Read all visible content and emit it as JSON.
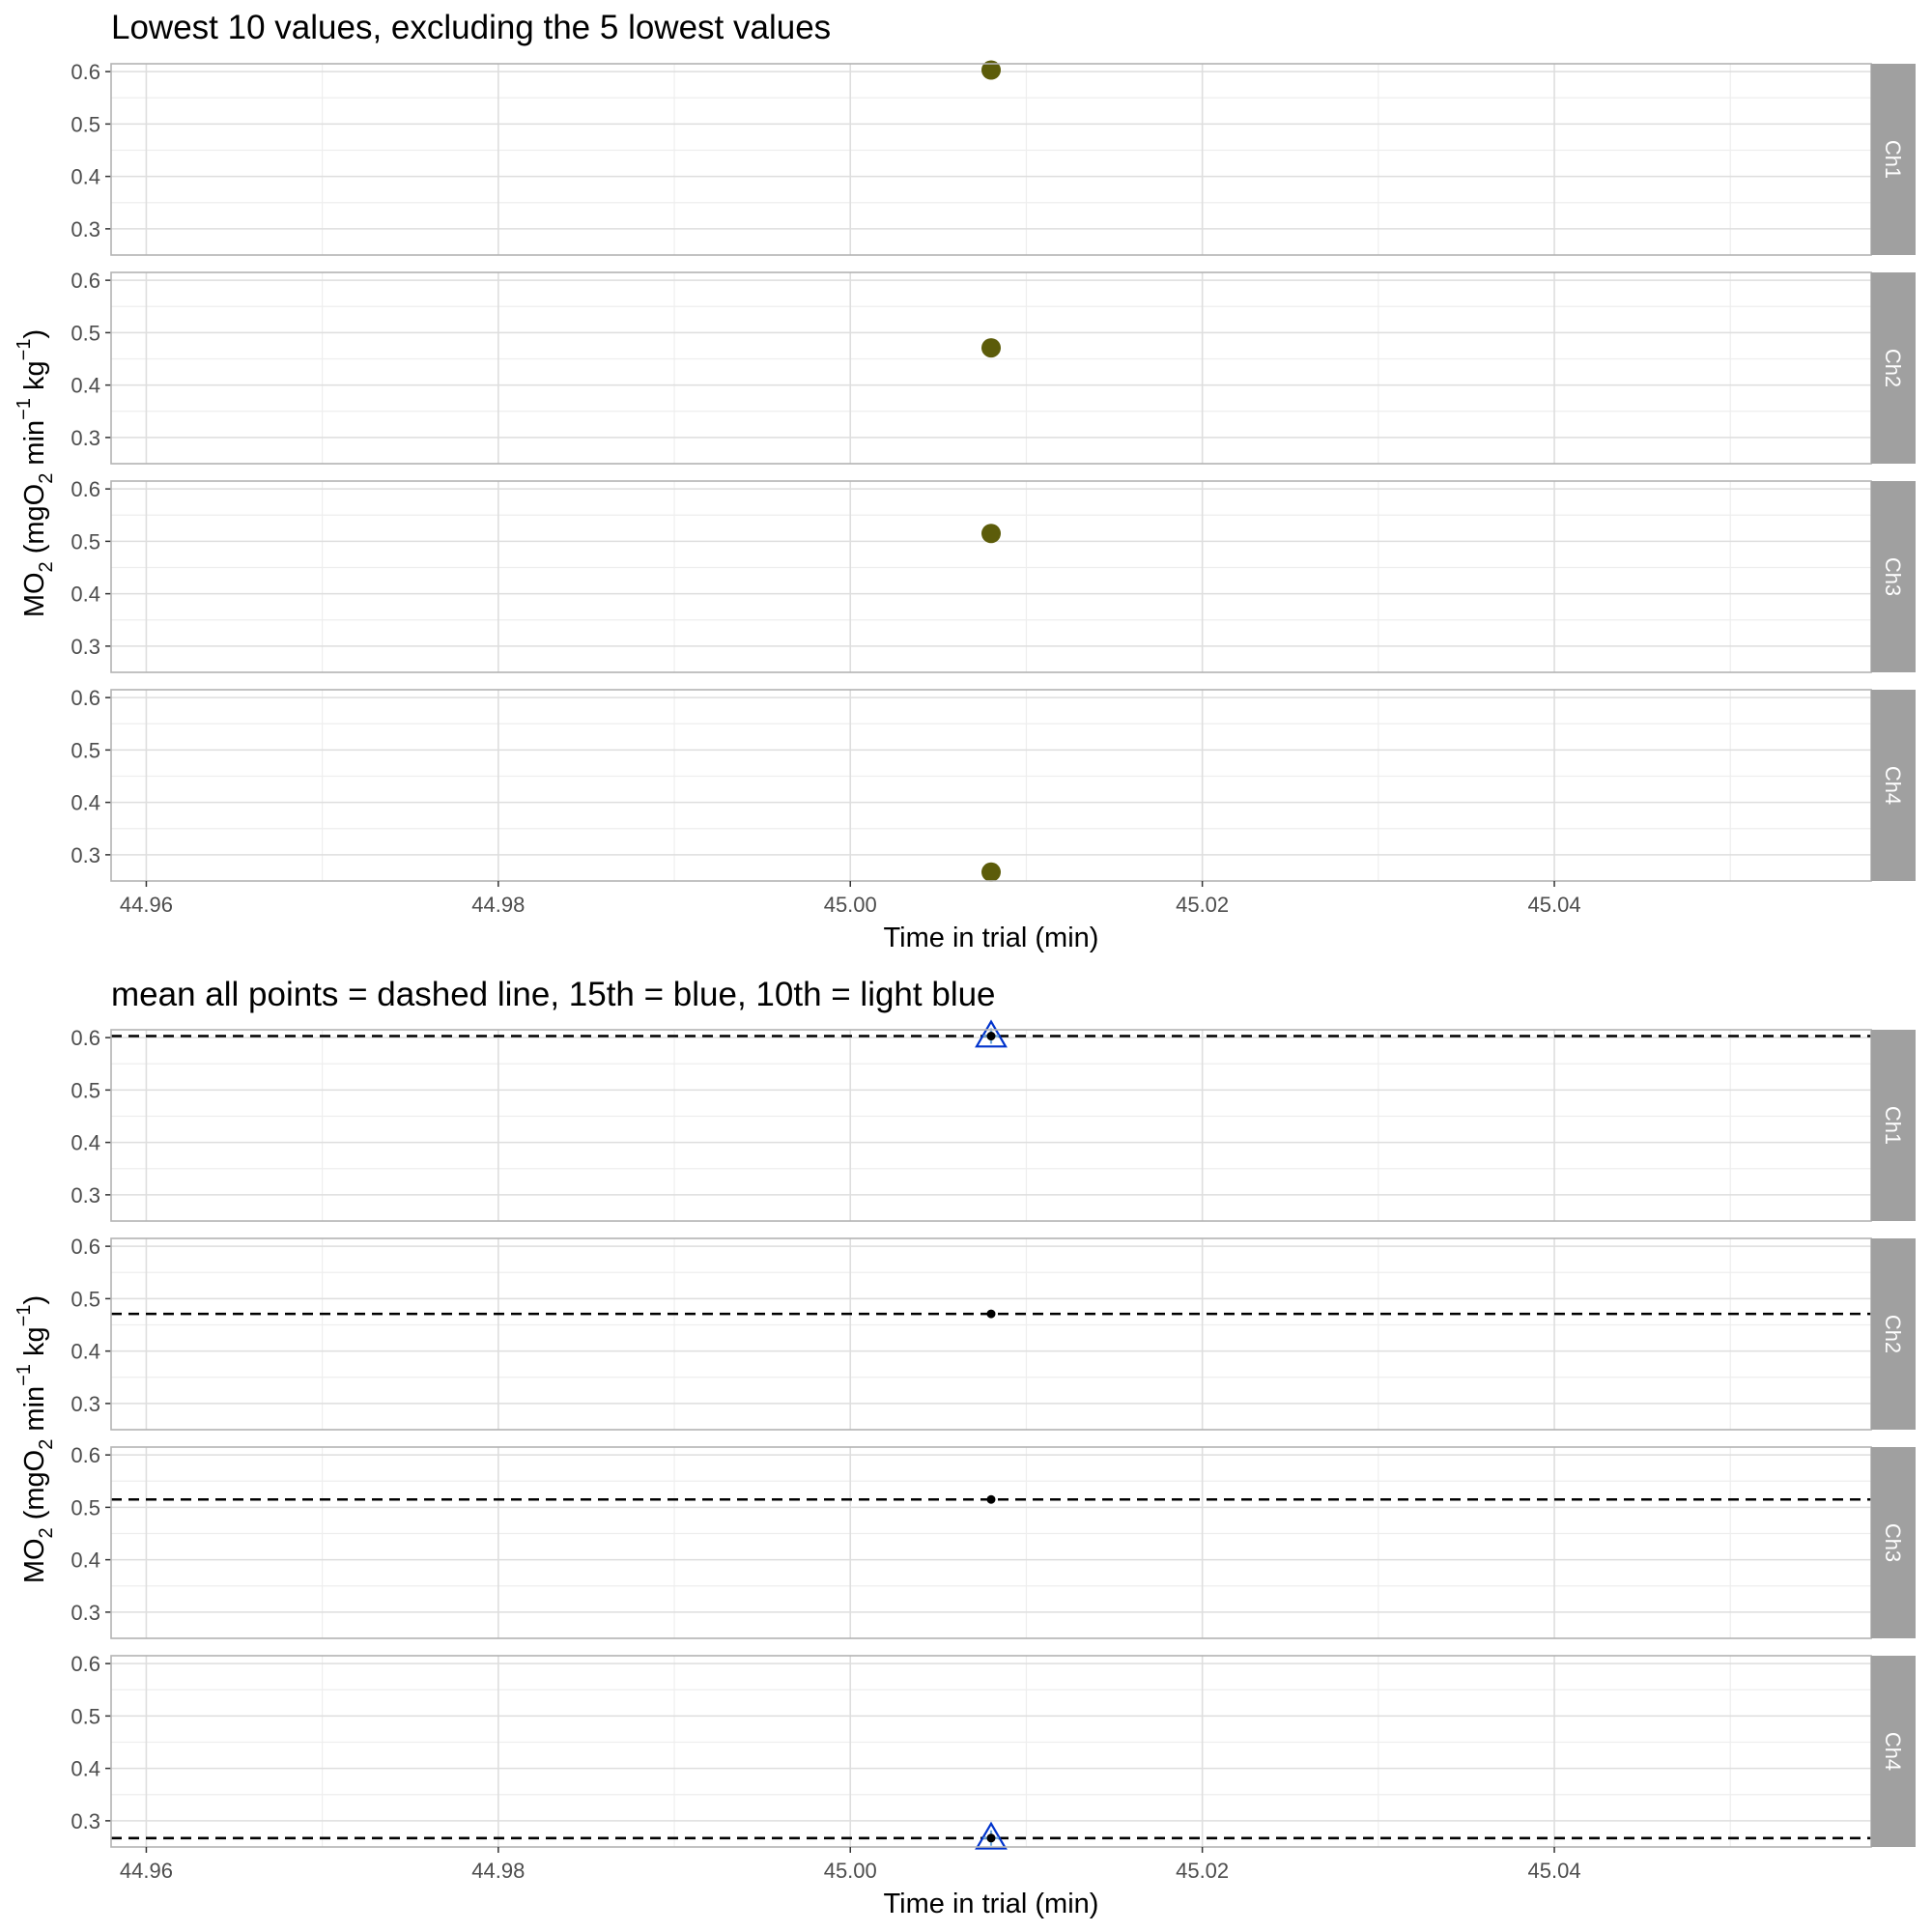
{
  "chart_data": [
    {
      "type": "scatter",
      "title": "Lowest 10 values, excluding the 5 lowest values",
      "xlabel": "Time in trial (min)",
      "ylabel": "MO2 (mgO2 min-1 kg-1)",
      "xlim": [
        44.958,
        45.058
      ],
      "ylim": [
        0.25,
        0.615
      ],
      "x_ticks": [
        "44.96",
        "44.98",
        "45.00",
        "45.02",
        "45.04"
      ],
      "x_tick_values": [
        44.96,
        44.98,
        45.0,
        45.02,
        45.04
      ],
      "y_ticks": [
        "0.3",
        "0.4",
        "0.5",
        "0.6"
      ],
      "y_tick_values": [
        0.3,
        0.4,
        0.5,
        0.6
      ],
      "grid": true,
      "point_color": "#5c5c0a",
      "panels": [
        {
          "strip": "Ch1",
          "points": [
            {
              "x": 45.008,
              "y": 0.603
            }
          ]
        },
        {
          "strip": "Ch2",
          "points": [
            {
              "x": 45.008,
              "y": 0.471
            }
          ]
        },
        {
          "strip": "Ch3",
          "points": [
            {
              "x": 45.008,
              "y": 0.515
            }
          ]
        },
        {
          "strip": "Ch4",
          "points": [
            {
              "x": 45.008,
              "y": 0.267
            }
          ]
        }
      ]
    },
    {
      "type": "scatter",
      "title": "mean all points = dashed line, 15th = blue, 10th = light blue",
      "xlabel": "Time in trial (min)",
      "ylabel": "MO2 (mgO2 min-1 kg-1)",
      "xlim": [
        44.958,
        45.058
      ],
      "ylim": [
        0.25,
        0.615
      ],
      "x_ticks": [
        "44.96",
        "44.98",
        "45.00",
        "45.02",
        "45.04"
      ],
      "x_tick_values": [
        44.96,
        44.98,
        45.0,
        45.02,
        45.04
      ],
      "y_ticks": [
        "0.3",
        "0.4",
        "0.5",
        "0.6"
      ],
      "y_tick_values": [
        0.3,
        0.4,
        0.5,
        0.6
      ],
      "grid": true,
      "point_color": "#000000",
      "mean_line_color": "#000000",
      "triangle_color": "#0033cc",
      "cross_color": "#6fa8dc",
      "panels": [
        {
          "strip": "Ch1",
          "points": [
            {
              "x": 45.008,
              "y": 0.603
            }
          ],
          "mean": 0.603,
          "triangle": true
        },
        {
          "strip": "Ch2",
          "points": [
            {
              "x": 45.008,
              "y": 0.471
            }
          ],
          "mean": 0.471,
          "triangle": false
        },
        {
          "strip": "Ch3",
          "points": [
            {
              "x": 45.008,
              "y": 0.515
            }
          ],
          "mean": 0.515,
          "triangle": false
        },
        {
          "strip": "Ch4",
          "points": [
            {
              "x": 45.008,
              "y": 0.267
            }
          ],
          "mean": 0.267,
          "triangle": true
        }
      ]
    }
  ],
  "colors": {
    "strip_background": "#a0a0a0",
    "panel_border": "#b3b3b3",
    "grid_major": "#dedede",
    "grid_minor": "#eeeeee"
  }
}
